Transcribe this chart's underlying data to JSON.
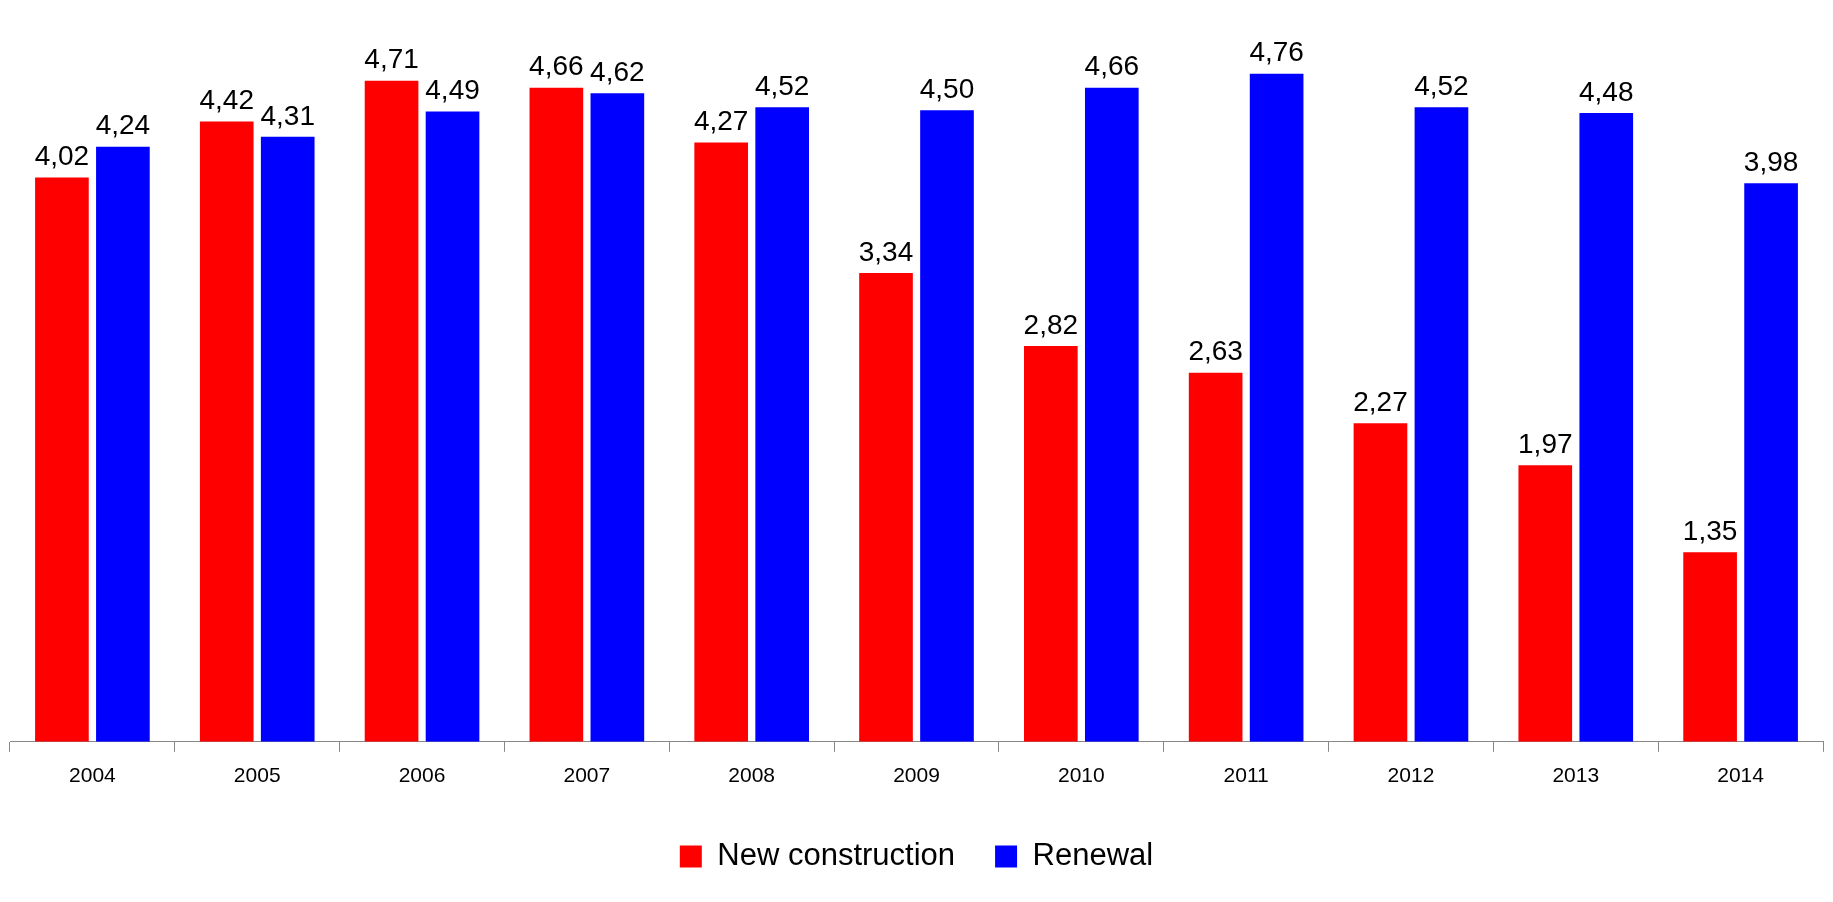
{
  "chart_data": {
    "type": "bar",
    "categories": [
      "2004",
      "2005",
      "2006",
      "2007",
      "2008",
      "2009",
      "2010",
      "2011",
      "2012",
      "2013",
      "2014"
    ],
    "series": [
      {
        "name": "New construction",
        "color": "#ff0000",
        "values": [
          4.02,
          4.42,
          4.71,
          4.66,
          4.27,
          3.34,
          2.82,
          2.63,
          2.27,
          1.97,
          1.35
        ],
        "value_labels": [
          "4,02",
          "4,42",
          "4,71",
          "4,66",
          "4,27",
          "3,34",
          "2,82",
          "2,63",
          "2,27",
          "1,97",
          "1,35"
        ]
      },
      {
        "name": "Renewal",
        "color": "#0000ff",
        "values": [
          4.24,
          4.31,
          4.49,
          4.62,
          4.52,
          4.5,
          4.66,
          4.76,
          4.52,
          4.48,
          3.98
        ],
        "value_labels": [
          "4,24",
          "4,31",
          "4,49",
          "4,62",
          "4,52",
          "4,50",
          "4,66",
          "4,76",
          "4,52",
          "4,48",
          "3,98"
        ]
      }
    ],
    "legend": "bottom",
    "grid": false,
    "tick_labels": "x"
  }
}
